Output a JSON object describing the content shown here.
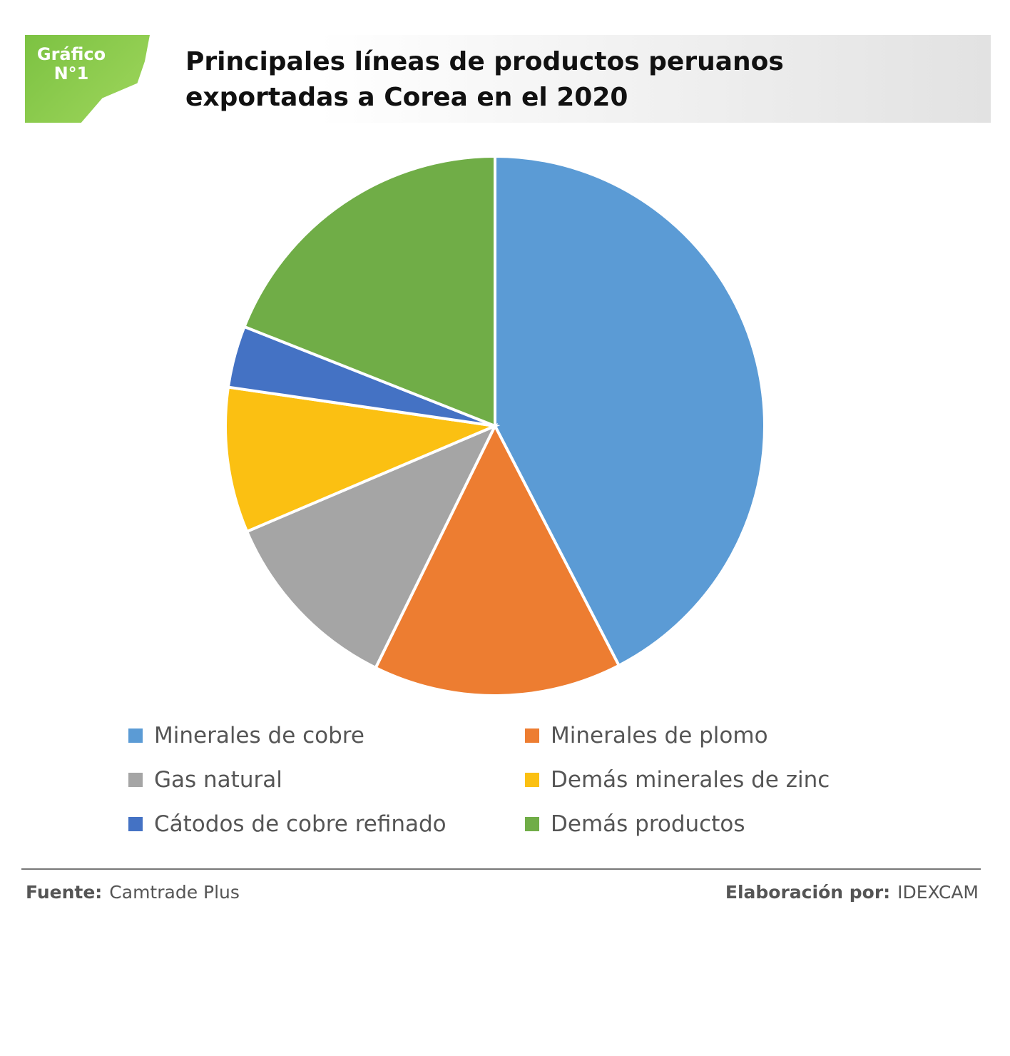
{
  "chart_data": {
    "type": "pie",
    "badge": [
      "Gráfico",
      "N°1"
    ],
    "title": [
      "Principales líneas de productos peruanos",
      "exportadas a Corea en el 2020"
    ],
    "categories": [
      "Minerales de cobre",
      "Minerales de plomo",
      "Gas natural",
      "Demás minerales de zinc",
      "Cátodos de cobre refinado",
      "Demás productos"
    ],
    "values": [
      42.4,
      14.9,
      11.3,
      8.7,
      3.7,
      19.0
    ],
    "colors": [
      "#5b9bd5",
      "#ed7d31",
      "#a5a5a5",
      "#fbc012",
      "#4472c4",
      "#70ad47"
    ],
    "source_label": "Fuente:",
    "source": "Camtrade Plus",
    "credit_label": "Elaboración por:",
    "credit": "IDEXCAM"
  }
}
